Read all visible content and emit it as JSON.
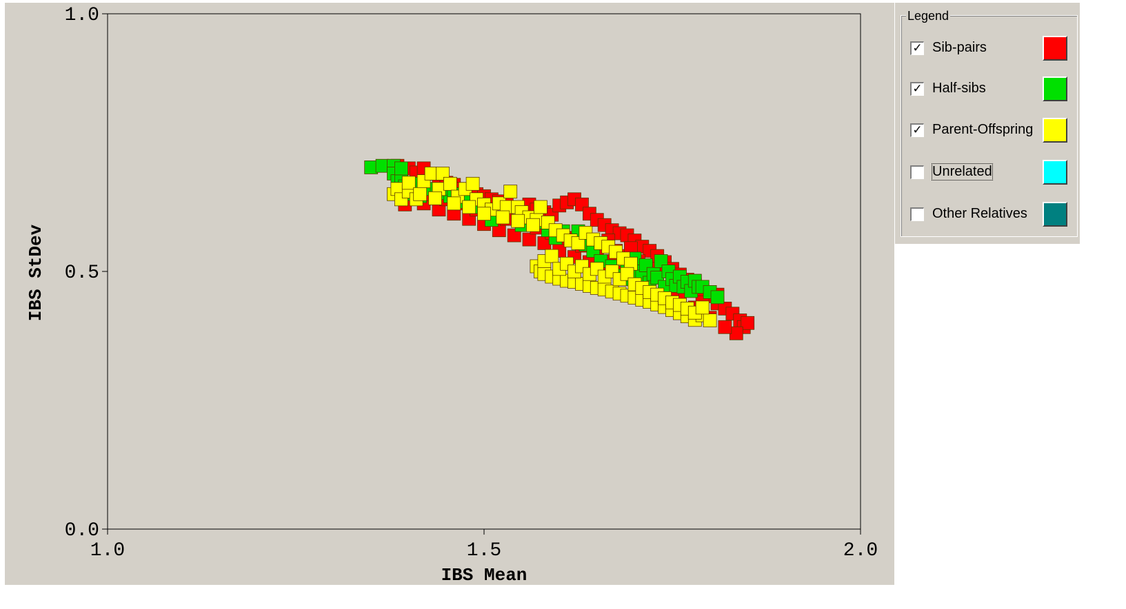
{
  "chart_data": {
    "type": "scatter",
    "xlabel": "IBS Mean",
    "ylabel": "IBS StDev",
    "xlim": [
      1.0,
      2.0
    ],
    "ylim": [
      0.0,
      1.0
    ],
    "xticks": [
      "1.0",
      "1.5",
      "2.0"
    ],
    "yticks": [
      "0.0",
      "0.5",
      "1.0"
    ],
    "grid": false,
    "legend_position": "right",
    "series": [
      {
        "name": "Sib-pairs",
        "color": "#ff0000",
        "points": [
          [
            1.385,
            0.705
          ],
          [
            1.39,
            0.688
          ],
          [
            1.4,
            0.7
          ],
          [
            1.41,
            0.692
          ],
          [
            1.42,
            0.7
          ],
          [
            1.43,
            0.69
          ],
          [
            1.44,
            0.675
          ],
          [
            1.45,
            0.672
          ],
          [
            1.46,
            0.668
          ],
          [
            1.47,
            0.66
          ],
          [
            1.48,
            0.655
          ],
          [
            1.49,
            0.65
          ],
          [
            1.5,
            0.646
          ],
          [
            1.51,
            0.64
          ],
          [
            1.52,
            0.636
          ],
          [
            1.53,
            0.63
          ],
          [
            1.55,
            0.624
          ],
          [
            1.56,
            0.63
          ],
          [
            1.57,
            0.62
          ],
          [
            1.58,
            0.615
          ],
          [
            1.59,
            0.61
          ],
          [
            1.6,
            0.628
          ],
          [
            1.61,
            0.634
          ],
          [
            1.62,
            0.64
          ],
          [
            1.63,
            0.63
          ],
          [
            1.64,
            0.612
          ],
          [
            1.65,
            0.6
          ],
          [
            1.66,
            0.59
          ],
          [
            1.67,
            0.58
          ],
          [
            1.68,
            0.574
          ],
          [
            1.69,
            0.57
          ],
          [
            1.7,
            0.56
          ],
          [
            1.71,
            0.548
          ],
          [
            1.72,
            0.54
          ],
          [
            1.73,
            0.53
          ],
          [
            1.74,
            0.518
          ],
          [
            1.75,
            0.505
          ],
          [
            1.76,
            0.494
          ],
          [
            1.77,
            0.484
          ],
          [
            1.78,
            0.474
          ],
          [
            1.79,
            0.462
          ],
          [
            1.8,
            0.452
          ],
          [
            1.81,
            0.438
          ],
          [
            1.82,
            0.428
          ],
          [
            1.83,
            0.418
          ],
          [
            1.84,
            0.405
          ],
          [
            1.845,
            0.392
          ],
          [
            1.85,
            0.4
          ],
          [
            1.835,
            0.38
          ],
          [
            1.82,
            0.392
          ],
          [
            1.8,
            0.41
          ],
          [
            1.78,
            0.43
          ],
          [
            1.76,
            0.445
          ],
          [
            1.74,
            0.458
          ],
          [
            1.72,
            0.47
          ],
          [
            1.7,
            0.485
          ],
          [
            1.68,
            0.498
          ],
          [
            1.66,
            0.508
          ],
          [
            1.64,
            0.518
          ],
          [
            1.62,
            0.528
          ],
          [
            1.6,
            0.54
          ],
          [
            1.58,
            0.555
          ],
          [
            1.56,
            0.562
          ],
          [
            1.54,
            0.57
          ],
          [
            1.52,
            0.58
          ],
          [
            1.5,
            0.592
          ],
          [
            1.48,
            0.602
          ],
          [
            1.46,
            0.612
          ],
          [
            1.44,
            0.62
          ],
          [
            1.42,
            0.632
          ],
          [
            1.4,
            0.642
          ],
          [
            1.395,
            0.63
          ],
          [
            1.41,
            0.66
          ],
          [
            1.45,
            0.64
          ],
          [
            1.49,
            0.62
          ],
          [
            1.53,
            0.602
          ],
          [
            1.57,
            0.585
          ],
          [
            1.61,
            0.565
          ],
          [
            1.65,
            0.545
          ],
          [
            1.69,
            0.525
          ],
          [
            1.73,
            0.505
          ],
          [
            1.77,
            0.48
          ],
          [
            1.81,
            0.455
          ],
          [
            1.79,
            0.44
          ],
          [
            1.75,
            0.462
          ],
          [
            1.71,
            0.495
          ],
          [
            1.67,
            0.52
          ],
          [
            1.63,
            0.55
          ],
          [
            1.59,
            0.575
          ],
          [
            1.55,
            0.598
          ],
          [
            1.51,
            0.61
          ],
          [
            1.47,
            0.632
          ],
          [
            1.43,
            0.65
          ],
          [
            1.665,
            0.56
          ],
          [
            1.675,
            0.54
          ],
          [
            1.685,
            0.53
          ],
          [
            1.695,
            0.545
          ],
          [
            1.705,
            0.52
          ],
          [
            1.715,
            0.505
          ],
          [
            1.725,
            0.495
          ]
        ]
      },
      {
        "name": "Half-sibs",
        "color": "#00e000",
        "points": [
          [
            1.35,
            0.702
          ],
          [
            1.365,
            0.705
          ],
          [
            1.38,
            0.705
          ],
          [
            1.38,
            0.69
          ],
          [
            1.385,
            0.675
          ],
          [
            1.39,
            0.68
          ],
          [
            1.395,
            0.665
          ],
          [
            1.4,
            0.66
          ],
          [
            1.405,
            0.65
          ],
          [
            1.415,
            0.646
          ],
          [
            1.43,
            0.66
          ],
          [
            1.44,
            0.652
          ],
          [
            1.455,
            0.646
          ],
          [
            1.465,
            0.64
          ],
          [
            1.475,
            0.635
          ],
          [
            1.49,
            0.625
          ],
          [
            1.51,
            0.6
          ],
          [
            1.55,
            0.59
          ],
          [
            1.57,
            0.595
          ],
          [
            1.585,
            0.58
          ],
          [
            1.595,
            0.565
          ],
          [
            1.605,
            0.578
          ],
          [
            1.615,
            0.56
          ],
          [
            1.625,
            0.578
          ],
          [
            1.635,
            0.552
          ],
          [
            1.645,
            0.54
          ],
          [
            1.655,
            0.52
          ],
          [
            1.67,
            0.51
          ],
          [
            1.68,
            0.492
          ],
          [
            1.69,
            0.505
          ],
          [
            1.695,
            0.485
          ],
          [
            1.7,
            0.525
          ],
          [
            1.705,
            0.5
          ],
          [
            1.71,
            0.49
          ],
          [
            1.715,
            0.512
          ],
          [
            1.72,
            0.478
          ],
          [
            1.725,
            0.495
          ],
          [
            1.73,
            0.488
          ],
          [
            1.735,
            0.52
          ],
          [
            1.74,
            0.47
          ],
          [
            1.745,
            0.5
          ],
          [
            1.75,
            0.485
          ],
          [
            1.755,
            0.472
          ],
          [
            1.76,
            0.49
          ],
          [
            1.765,
            0.47
          ],
          [
            1.77,
            0.48
          ],
          [
            1.775,
            0.462
          ],
          [
            1.78,
            0.482
          ],
          [
            1.785,
            0.47
          ],
          [
            1.79,
            0.47
          ],
          [
            1.8,
            0.46
          ],
          [
            1.81,
            0.45
          ],
          [
            1.39,
            0.7
          ],
          [
            1.41,
            0.67
          ],
          [
            1.42,
            0.66
          ],
          [
            1.45,
            0.66
          ],
          [
            1.46,
            0.65
          ]
        ]
      },
      {
        "name": "Parent-Offspring",
        "color": "#ffff00",
        "points": [
          [
            1.38,
            0.65
          ],
          [
            1.385,
            0.66
          ],
          [
            1.39,
            0.64
          ],
          [
            1.4,
            0.655
          ],
          [
            1.41,
            0.64
          ],
          [
            1.42,
            0.675
          ],
          [
            1.43,
            0.69
          ],
          [
            1.44,
            0.66
          ],
          [
            1.445,
            0.69
          ],
          [
            1.455,
            0.67
          ],
          [
            1.465,
            0.645
          ],
          [
            1.475,
            0.66
          ],
          [
            1.485,
            0.67
          ],
          [
            1.49,
            0.64
          ],
          [
            1.5,
            0.63
          ],
          [
            1.51,
            0.62
          ],
          [
            1.52,
            0.632
          ],
          [
            1.53,
            0.625
          ],
          [
            1.535,
            0.655
          ],
          [
            1.545,
            0.625
          ],
          [
            1.55,
            0.615
          ],
          [
            1.56,
            0.605
          ],
          [
            1.57,
            0.6
          ],
          [
            1.575,
            0.625
          ],
          [
            1.585,
            0.595
          ],
          [
            1.595,
            0.58
          ],
          [
            1.605,
            0.57
          ],
          [
            1.615,
            0.56
          ],
          [
            1.625,
            0.555
          ],
          [
            1.635,
            0.575
          ],
          [
            1.645,
            0.562
          ],
          [
            1.655,
            0.555
          ],
          [
            1.665,
            0.548
          ],
          [
            1.675,
            0.538
          ],
          [
            1.685,
            0.525
          ],
          [
            1.695,
            0.515
          ],
          [
            1.57,
            0.51
          ],
          [
            1.575,
            0.5
          ],
          [
            1.58,
            0.495
          ],
          [
            1.59,
            0.49
          ],
          [
            1.6,
            0.486
          ],
          [
            1.61,
            0.482
          ],
          [
            1.62,
            0.48
          ],
          [
            1.63,
            0.476
          ],
          [
            1.64,
            0.472
          ],
          [
            1.65,
            0.468
          ],
          [
            1.66,
            0.465
          ],
          [
            1.67,
            0.461
          ],
          [
            1.68,
            0.457
          ],
          [
            1.69,
            0.453
          ],
          [
            1.7,
            0.449
          ],
          [
            1.71,
            0.445
          ],
          [
            1.72,
            0.441
          ],
          [
            1.73,
            0.436
          ],
          [
            1.74,
            0.431
          ],
          [
            1.75,
            0.425
          ],
          [
            1.76,
            0.419
          ],
          [
            1.77,
            0.413
          ],
          [
            1.78,
            0.406
          ],
          [
            1.79,
            0.415
          ],
          [
            1.8,
            0.405
          ],
          [
            1.58,
            0.52
          ],
          [
            1.59,
            0.53
          ],
          [
            1.6,
            0.505
          ],
          [
            1.61,
            0.515
          ],
          [
            1.62,
            0.5
          ],
          [
            1.63,
            0.51
          ],
          [
            1.64,
            0.495
          ],
          [
            1.65,
            0.505
          ],
          [
            1.66,
            0.49
          ],
          [
            1.67,
            0.5
          ],
          [
            1.68,
            0.485
          ],
          [
            1.69,
            0.495
          ],
          [
            1.7,
            0.475
          ],
          [
            1.71,
            0.468
          ],
          [
            1.72,
            0.46
          ],
          [
            1.73,
            0.455
          ],
          [
            1.74,
            0.448
          ],
          [
            1.75,
            0.44
          ],
          [
            1.76,
            0.435
          ],
          [
            1.77,
            0.428
          ],
          [
            1.78,
            0.42
          ],
          [
            1.79,
            0.43
          ],
          [
            1.4,
            0.672
          ],
          [
            1.415,
            0.65
          ],
          [
            1.435,
            0.642
          ],
          [
            1.46,
            0.632
          ],
          [
            1.48,
            0.625
          ],
          [
            1.5,
            0.612
          ],
          [
            1.525,
            0.605
          ],
          [
            1.545,
            0.598
          ],
          [
            1.565,
            0.59
          ]
        ]
      }
    ]
  },
  "legend": {
    "title": "Legend",
    "items": [
      {
        "label": "Sib-pairs",
        "checked": true,
        "color": "#ff0000"
      },
      {
        "label": "Half-sibs",
        "checked": true,
        "color": "#00e000"
      },
      {
        "label": "Parent-Offspring",
        "checked": true,
        "color": "#ffff00"
      },
      {
        "label": "Unrelated",
        "checked": false,
        "color": "#00ffff"
      },
      {
        "label": "Other Relatives",
        "checked": false,
        "color": "#008080"
      }
    ]
  }
}
